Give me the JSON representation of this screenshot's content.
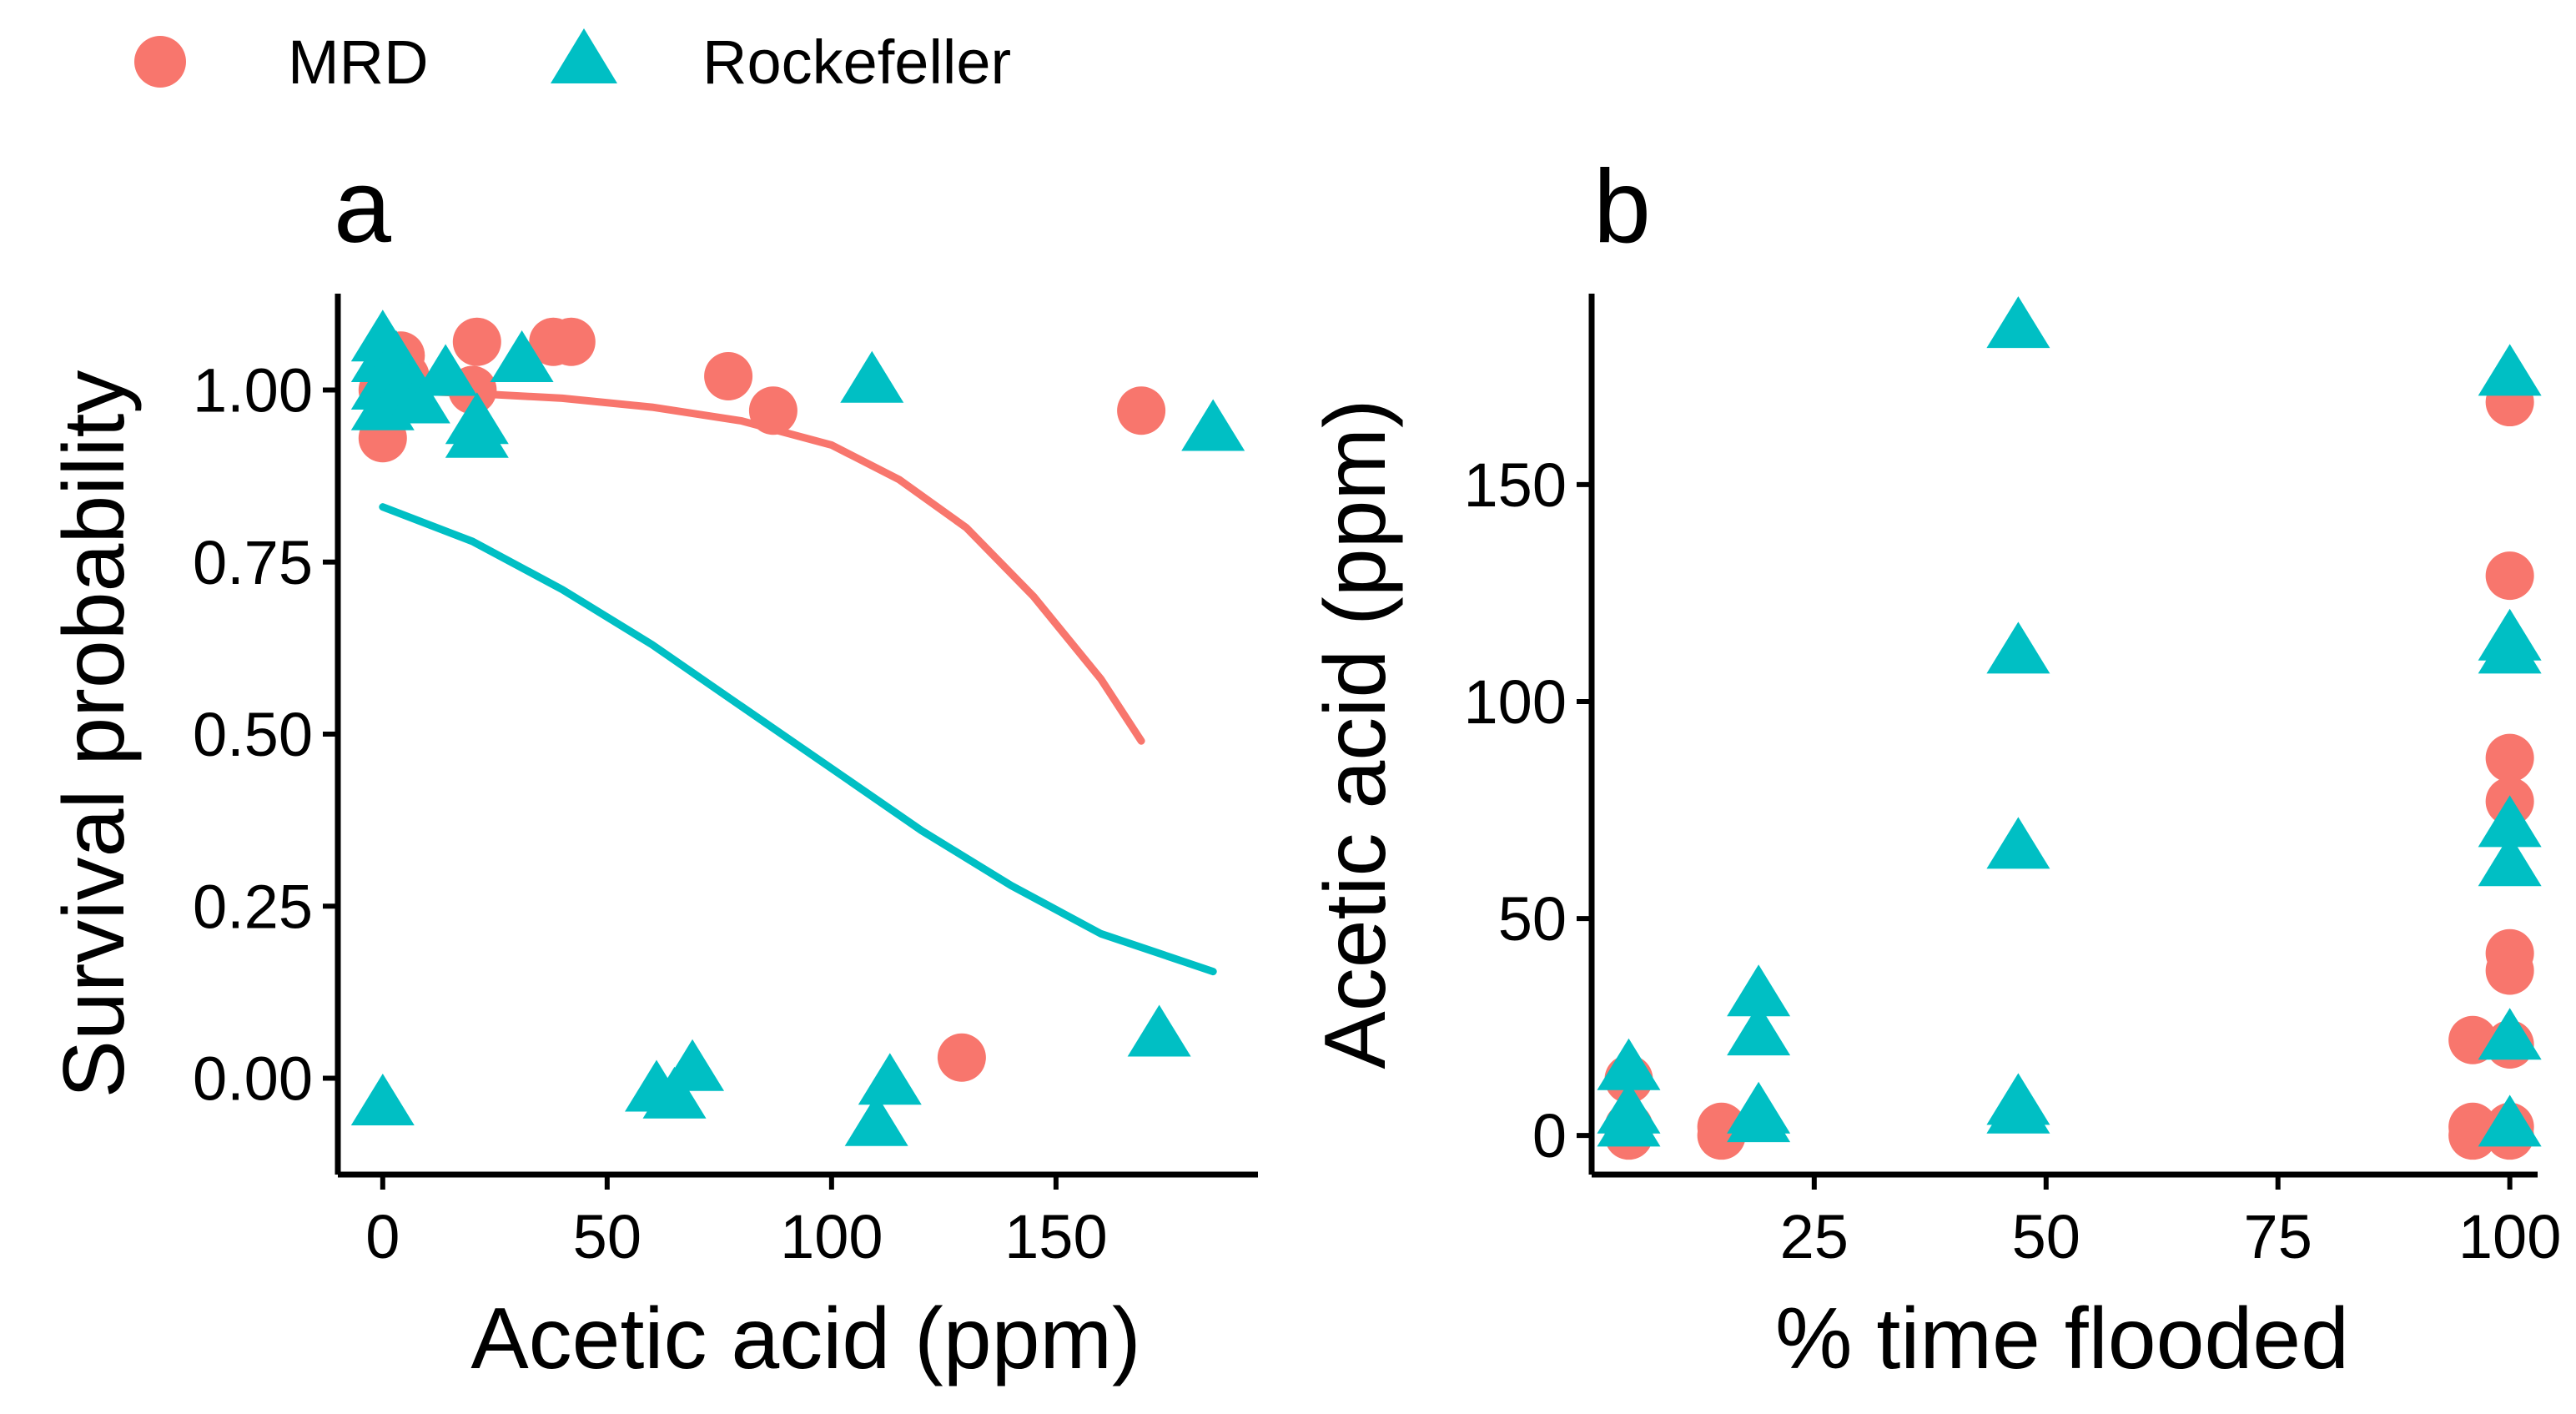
{
  "colors": {
    "mrd": "#F8766D",
    "rockefeller": "#00BFC4",
    "axis": "#000000"
  },
  "legend": {
    "placement": "top-left",
    "items": [
      {
        "label": "MRD",
        "shape": "circle",
        "color": "#F8766D"
      },
      {
        "label": "Rockefeller",
        "shape": "triangle",
        "color": "#00BFC4"
      }
    ]
  },
  "chart_data": [
    {
      "panel": "a",
      "type": "scatter",
      "xlabel": "Acetic acid (ppm)",
      "ylabel": "Survival probability",
      "xlim": [
        -10,
        195
      ],
      "ylim": [
        -0.14,
        1.14
      ],
      "xticks": [
        0,
        50,
        100,
        150
      ],
      "yticks": [
        0.0,
        0.25,
        0.5,
        0.75,
        1.0
      ],
      "xtick_labels": [
        "0",
        "50",
        "100",
        "150"
      ],
      "ytick_labels": [
        "0.00",
        "0.25",
        "0.50",
        "0.75",
        "1.00"
      ],
      "series": [
        {
          "name": "MRD",
          "marker": "circle",
          "points": [
            [
              0,
              1.0
            ],
            [
              0,
              0.93
            ],
            [
              2,
              1.04
            ],
            [
              2,
              0.98
            ],
            [
              4,
              1.05
            ],
            [
              5,
              1.02
            ],
            [
              20,
              1.0
            ],
            [
              21,
              1.07
            ],
            [
              38,
              1.07
            ],
            [
              42,
              1.07
            ],
            [
              77,
              1.02
            ],
            [
              87,
              0.97
            ],
            [
              129,
              0.03
            ],
            [
              169,
              0.97
            ]
          ]
        },
        {
          "name": "Rockefeller",
          "marker": "triangle",
          "points": [
            [
              0,
              1.07
            ],
            [
              0,
              1.04
            ],
            [
              0,
              1.0
            ],
            [
              0,
              0.97
            ],
            [
              0,
              -0.04
            ],
            [
              3,
              1.04
            ],
            [
              5,
              1.0
            ],
            [
              8,
              0.98
            ],
            [
              14,
              1.02
            ],
            [
              21,
              0.95
            ],
            [
              21,
              0.93
            ],
            [
              31,
              1.04
            ],
            [
              109,
              1.01
            ],
            [
              185,
              0.94
            ],
            [
              61,
              -0.02
            ],
            [
              65,
              -0.03
            ],
            [
              69,
              0.01
            ],
            [
              110,
              -0.07
            ],
            [
              113,
              -0.01
            ],
            [
              173,
              0.06
            ]
          ]
        },
        {
          "name": "MRD fit",
          "type": "line",
          "color": "#F8766D",
          "points": [
            [
              0,
              1.0
            ],
            [
              20,
              0.995
            ],
            [
              40,
              0.988
            ],
            [
              60,
              0.975
            ],
            [
              80,
              0.955
            ],
            [
              100,
              0.92
            ],
            [
              115,
              0.87
            ],
            [
              130,
              0.8
            ],
            [
              145,
              0.7
            ],
            [
              160,
              0.58
            ],
            [
              169,
              0.49
            ]
          ]
        },
        {
          "name": "Rockefeller fit",
          "type": "line",
          "color": "#00BFC4",
          "points": [
            [
              0,
              0.83
            ],
            [
              20,
              0.78
            ],
            [
              40,
              0.71
            ],
            [
              60,
              0.63
            ],
            [
              80,
              0.54
            ],
            [
              100,
              0.45
            ],
            [
              120,
              0.36
            ],
            [
              140,
              0.28
            ],
            [
              160,
              0.21
            ],
            [
              185,
              0.155
            ]
          ]
        }
      ]
    },
    {
      "panel": "b",
      "type": "scatter",
      "xlabel": "% time flooded",
      "ylabel": "Acetic acid (ppm)",
      "xlim": [
        1,
        103
      ],
      "ylim": [
        -9,
        194
      ],
      "xticks": [
        25,
        50,
        75,
        100
      ],
      "yticks": [
        0,
        50,
        100,
        150
      ],
      "xtick_labels": [
        "25",
        "50",
        "75",
        "100"
      ],
      "ytick_labels": [
        "0",
        "50",
        "100",
        "150"
      ],
      "series": [
        {
          "name": "MRD",
          "marker": "circle",
          "points": [
            [
              5,
              13
            ],
            [
              5,
              2
            ],
            [
              5,
              0
            ],
            [
              15,
              2
            ],
            [
              15,
              0
            ],
            [
              96,
              22
            ],
            [
              96,
              2
            ],
            [
              96,
              0
            ],
            [
              100,
              169
            ],
            [
              100,
              129
            ],
            [
              100,
              87
            ],
            [
              100,
              77
            ],
            [
              100,
              42
            ],
            [
              100,
              38
            ],
            [
              100,
              21
            ],
            [
              100,
              2
            ],
            [
              100,
              0
            ]
          ]
        },
        {
          "name": "Rockefeller",
          "marker": "triangle",
          "points": [
            [
              5,
              15
            ],
            [
              5,
              5
            ],
            [
              5,
              2
            ],
            [
              19,
              32
            ],
            [
              19,
              23
            ],
            [
              19,
              5
            ],
            [
              19,
              3
            ],
            [
              47,
              186
            ],
            [
              47,
              111
            ],
            [
              47,
              66
            ],
            [
              47,
              7
            ],
            [
              47,
              5
            ],
            [
              100,
              175
            ],
            [
              100,
              114
            ],
            [
              100,
              111
            ],
            [
              100,
              71
            ],
            [
              100,
              62
            ],
            [
              100,
              22
            ],
            [
              100,
              2
            ]
          ]
        }
      ]
    }
  ]
}
